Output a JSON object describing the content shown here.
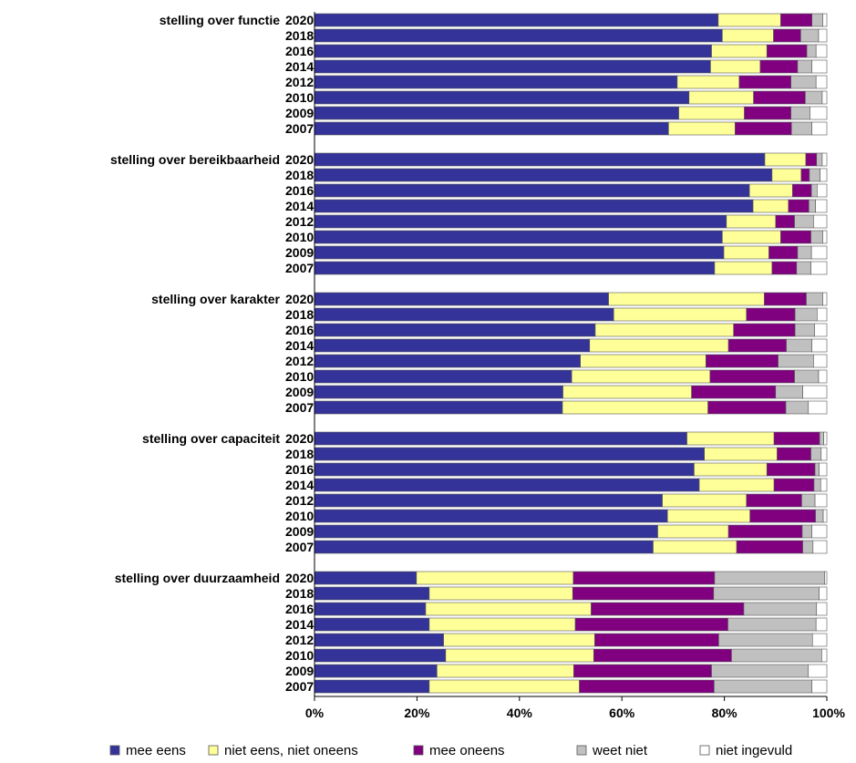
{
  "chart_data": {
    "type": "bar",
    "orientation": "horizontal",
    "stacked": true,
    "normalized": true,
    "xlim": [
      0,
      100
    ],
    "x_ticks": [
      "0%",
      "20%",
      "40%",
      "60%",
      "80%",
      "100%"
    ],
    "grid": false,
    "legend_position": "bottom",
    "series": [
      {
        "key": "mee_eens",
        "name": "mee eens",
        "color": "#333399"
      },
      {
        "key": "niet_eens",
        "name": "niet eens, niet oneens",
        "color": "#ffff99"
      },
      {
        "key": "mee_oneens",
        "name": "mee oneens",
        "color": "#800080"
      },
      {
        "key": "weet_niet",
        "name": "weet niet",
        "color": "#c0c0c0"
      },
      {
        "key": "niet_ingevuld",
        "name": "niet ingevuld",
        "color": "#ffffff"
      }
    ],
    "groups": [
      {
        "title": "stelling over functie",
        "rows": [
          {
            "year": "2020",
            "values": [
              78.8,
              12.2,
              6.1,
              2.1,
              0.8
            ]
          },
          {
            "year": "2018",
            "values": [
              79.6,
              10.0,
              5.3,
              3.5,
              1.6
            ]
          },
          {
            "year": "2016",
            "values": [
              77.5,
              10.8,
              7.8,
              1.8,
              2.1
            ]
          },
          {
            "year": "2014",
            "values": [
              77.3,
              9.7,
              7.3,
              2.8,
              2.9
            ]
          },
          {
            "year": "2012",
            "values": [
              70.8,
              12.1,
              10.1,
              4.9,
              2.1
            ]
          },
          {
            "year": "2010",
            "values": [
              73.1,
              12.6,
              10.1,
              3.3,
              0.9
            ]
          },
          {
            "year": "2009",
            "values": [
              71.1,
              12.8,
              9.1,
              3.7,
              3.3
            ]
          },
          {
            "year": "2007",
            "values": [
              69.1,
              13.0,
              11.0,
              4.0,
              2.9
            ]
          }
        ]
      },
      {
        "title": "stelling over bereikbaarheid",
        "rows": [
          {
            "year": "2020",
            "values": [
              87.9,
              8.0,
              2.1,
              1.1,
              0.9
            ]
          },
          {
            "year": "2018",
            "values": [
              89.3,
              5.7,
              1.6,
              2.1,
              1.3
            ]
          },
          {
            "year": "2016",
            "values": [
              84.9,
              8.4,
              3.7,
              1.1,
              1.9
            ]
          },
          {
            "year": "2014",
            "values": [
              85.6,
              6.9,
              4.0,
              1.3,
              2.2
            ]
          },
          {
            "year": "2012",
            "values": [
              80.4,
              9.6,
              3.7,
              3.7,
              2.6
            ]
          },
          {
            "year": "2010",
            "values": [
              79.6,
              11.4,
              5.9,
              2.3,
              0.8
            ]
          },
          {
            "year": "2009",
            "values": [
              79.9,
              8.8,
              5.6,
              2.7,
              3.0
            ]
          },
          {
            "year": "2007",
            "values": [
              78.1,
              11.2,
              4.8,
              2.8,
              3.1
            ]
          }
        ]
      },
      {
        "title": "stelling over karakter",
        "rows": [
          {
            "year": "2020",
            "values": [
              57.4,
              30.4,
              8.2,
              3.2,
              0.8
            ]
          },
          {
            "year": "2018",
            "values": [
              58.4,
              25.9,
              9.5,
              4.3,
              1.9
            ]
          },
          {
            "year": "2016",
            "values": [
              54.8,
              27.0,
              12.0,
              3.8,
              2.4
            ]
          },
          {
            "year": "2014",
            "values": [
              53.7,
              27.1,
              11.3,
              5.0,
              2.9
            ]
          },
          {
            "year": "2012",
            "values": [
              51.9,
              24.5,
              14.1,
              6.9,
              2.6
            ]
          },
          {
            "year": "2010",
            "values": [
              50.2,
              27.0,
              16.5,
              4.7,
              1.6
            ]
          },
          {
            "year": "2009",
            "values": [
              48.5,
              25.1,
              16.4,
              5.3,
              4.7
            ]
          },
          {
            "year": "2007",
            "values": [
              48.4,
              28.4,
              15.2,
              4.4,
              3.6
            ]
          }
        ]
      },
      {
        "title": "stelling over capaciteit",
        "rows": [
          {
            "year": "2020",
            "values": [
              72.7,
              17.0,
              8.9,
              0.8,
              0.6
            ]
          },
          {
            "year": "2018",
            "values": [
              76.1,
              14.2,
              6.6,
              2.0,
              1.1
            ]
          },
          {
            "year": "2016",
            "values": [
              74.1,
              14.2,
              9.4,
              0.8,
              1.5
            ]
          },
          {
            "year": "2014",
            "values": [
              75.1,
              14.6,
              7.8,
              1.3,
              1.2
            ]
          },
          {
            "year": "2012",
            "values": [
              67.9,
              16.4,
              10.8,
              2.6,
              2.3
            ]
          },
          {
            "year": "2010",
            "values": [
              68.9,
              16.1,
              12.8,
              1.5,
              0.7
            ]
          },
          {
            "year": "2009",
            "values": [
              67.0,
              13.8,
              14.4,
              1.9,
              2.9
            ]
          },
          {
            "year": "2007",
            "values": [
              66.1,
              16.3,
              12.9,
              2.0,
              2.7
            ]
          }
        ]
      },
      {
        "title": "stelling over duurzaamheid",
        "rows": [
          {
            "year": "2020",
            "values": [
              19.9,
              30.6,
              27.6,
              21.5,
              0.4
            ]
          },
          {
            "year": "2018",
            "values": [
              22.4,
              28.0,
              27.5,
              20.6,
              1.5
            ]
          },
          {
            "year": "2016",
            "values": [
              21.7,
              32.3,
              29.8,
              14.2,
              2.0
            ]
          },
          {
            "year": "2014",
            "values": [
              22.4,
              28.5,
              29.8,
              17.2,
              2.1
            ]
          },
          {
            "year": "2012",
            "values": [
              25.2,
              29.5,
              24.2,
              18.3,
              2.8
            ]
          },
          {
            "year": "2010",
            "values": [
              25.6,
              28.9,
              26.9,
              17.6,
              1.0
            ]
          },
          {
            "year": "2009",
            "values": [
              23.9,
              26.7,
              26.9,
              18.9,
              3.6
            ]
          },
          {
            "year": "2007",
            "values": [
              22.4,
              29.3,
              26.3,
              19.1,
              2.9
            ]
          }
        ]
      }
    ]
  }
}
